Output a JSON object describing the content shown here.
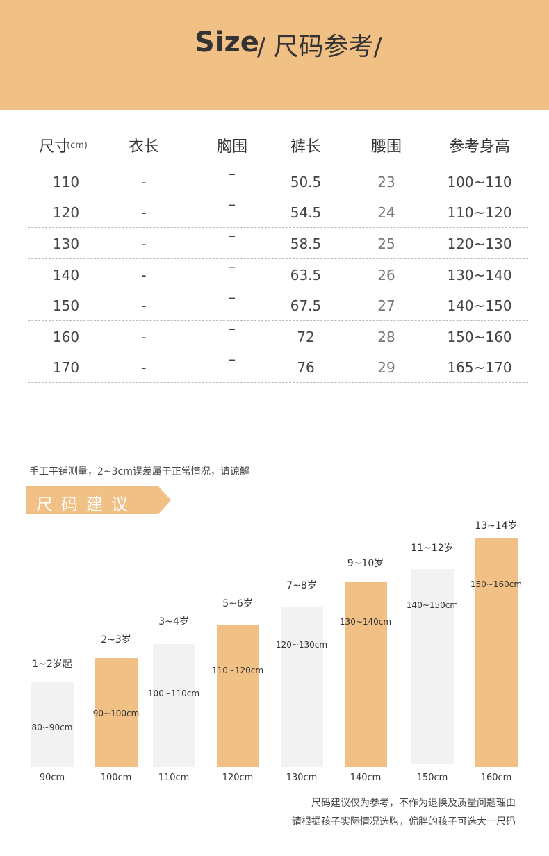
{
  "header": {
    "title": "Size",
    "subtitle": "/ 尺码参考/"
  },
  "table": {
    "columns": [
      "尺寸",
      "衣长",
      "胸围",
      "裤长",
      "腰围",
      "参考身高"
    ],
    "unit": "(cm)",
    "rows": [
      [
        "110",
        "-",
        "–",
        "50.5",
        "23",
        "100~110"
      ],
      [
        "120",
        "-",
        "–",
        "54.5",
        "24",
        "110~120"
      ],
      [
        "130",
        "-",
        "–",
        "58.5",
        "25",
        "120~130"
      ],
      [
        "140",
        "-",
        "–",
        "63.5",
        "26",
        "130~140"
      ],
      [
        "150",
        "-",
        "–",
        "67.5",
        "27",
        "140~150"
      ],
      [
        "160",
        "-",
        "–",
        "72",
        "28",
        "150~160"
      ],
      [
        "170",
        "-",
        "–",
        "76",
        "29",
        "165~170"
      ]
    ]
  },
  "note": "手工平铺测量，2~3cm误差属于正常情况，请谅解",
  "section_title": "尺码建议",
  "suggestions": [
    {
      "age": "1~2岁起",
      "range": "80~90cm",
      "size": "90cm"
    },
    {
      "age": "2~3岁",
      "range": "90~100cm",
      "size": "100cm"
    },
    {
      "age": "3~4岁",
      "range": "100~110cm",
      "size": "110cm"
    },
    {
      "age": "5~6岁",
      "range": "110~120cm",
      "size": "120cm"
    },
    {
      "age": "7~8岁",
      "range": "120~130cm",
      "size": "130cm"
    },
    {
      "age": "9~10岁",
      "range": "130~140cm",
      "size": "140cm"
    },
    {
      "age": "11~12岁",
      "range": "140~150cm",
      "size": "150cm"
    },
    {
      "age": "13~14岁",
      "range": "150~160cm",
      "size": "160cm"
    }
  ],
  "footer": [
    "尺码建议仅为参考，不作为退换及质量问题理由",
    "请根据孩子实际情况选购，偏胖的孩子可选大一尺码"
  ]
}
